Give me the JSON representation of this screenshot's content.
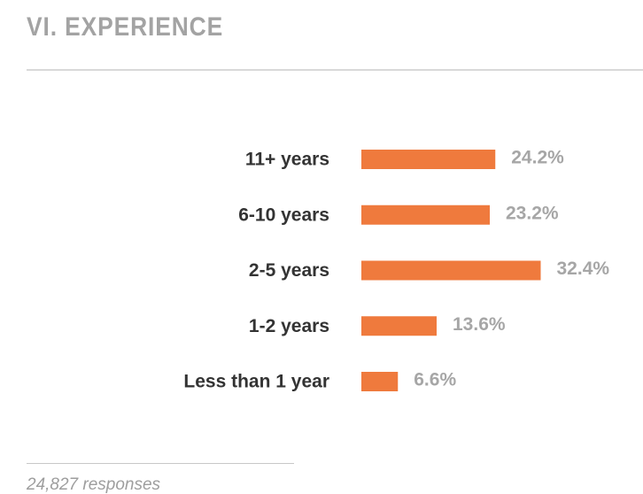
{
  "header": {
    "title": "VI. EXPERIENCE"
  },
  "footer": {
    "responses": "24,827 responses"
  },
  "colors": {
    "bar": "#ef7a3d",
    "title": "#a3a3a3",
    "category_text": "#333333",
    "value_text": "#a6a6a6"
  },
  "chart_data": {
    "type": "bar",
    "orientation": "horizontal",
    "categories": [
      "11+ years",
      "6-10 years",
      "2-5 years",
      "1-2 years",
      "Less than 1 year"
    ],
    "values": [
      24.2,
      23.2,
      32.4,
      13.6,
      6.6
    ],
    "value_labels": [
      "24.2%",
      "23.2%",
      "32.4%",
      "13.6%",
      "6.6%"
    ],
    "unit": "%",
    "xlim": [
      0,
      100
    ],
    "grid": false,
    "legend": "none"
  }
}
